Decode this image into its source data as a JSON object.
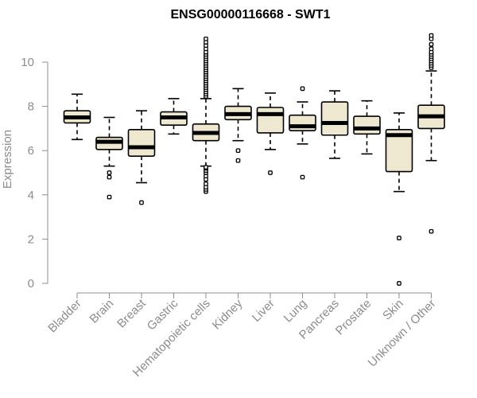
{
  "chart_data": {
    "type": "boxplot",
    "title": "ENSG00000116668 - SWT1",
    "xlabel": "",
    "ylabel": "Expression",
    "ylim": [
      0,
      11.3
    ],
    "yticks": [
      0,
      2,
      4,
      6,
      8,
      10
    ],
    "categories": [
      "Bladder",
      "Brain",
      "Breast",
      "Gastric",
      "Hematopoietic cells",
      "Kidney",
      "Liver",
      "Lung",
      "Pancreas",
      "Prostate",
      "Skin",
      "Unknown / Other"
    ],
    "box_color": "#efe8d0",
    "boxes": [
      {
        "category": "Bladder",
        "whisker_low": 6.5,
        "q1": 7.25,
        "median": 7.5,
        "q3": 7.8,
        "whisker_high": 8.55,
        "outliers": []
      },
      {
        "category": "Brain",
        "whisker_low": 5.3,
        "q1": 6.05,
        "median": 6.4,
        "q3": 6.6,
        "whisker_high": 7.5,
        "outliers": [
          5.0,
          4.8,
          3.9
        ]
      },
      {
        "category": "Breast",
        "whisker_low": 4.55,
        "q1": 5.75,
        "median": 6.15,
        "q3": 6.95,
        "whisker_high": 7.8,
        "outliers": [
          3.65
        ]
      },
      {
        "category": "Gastric",
        "whisker_low": 6.75,
        "q1": 7.15,
        "median": 7.5,
        "q3": 7.75,
        "whisker_high": 8.35,
        "outliers": []
      },
      {
        "category": "Hematopoietic cells",
        "whisker_low": 5.3,
        "q1": 6.45,
        "median": 6.8,
        "q3": 7.2,
        "whisker_high": 8.35,
        "outliers": [
          4.15,
          4.25,
          4.35,
          4.5,
          4.7,
          4.85,
          5.0,
          5.1,
          5.2,
          5.25,
          8.45,
          8.55,
          8.65,
          8.75,
          8.85,
          8.95,
          9.05,
          9.15,
          9.25,
          9.35,
          9.45,
          9.55,
          9.65,
          9.75,
          9.85,
          9.95,
          10.05,
          10.15,
          10.25,
          10.35,
          10.45,
          10.6,
          10.75,
          10.9,
          11.05
        ]
      },
      {
        "category": "Kidney",
        "whisker_low": 6.45,
        "q1": 7.4,
        "median": 7.65,
        "q3": 8.0,
        "whisker_high": 8.8,
        "outliers": [
          6.0,
          5.55
        ]
      },
      {
        "category": "Liver",
        "whisker_low": 6.05,
        "q1": 6.8,
        "median": 7.65,
        "q3": 7.95,
        "whisker_high": 8.6,
        "outliers": [
          5.0
        ]
      },
      {
        "category": "Lung",
        "whisker_low": 6.3,
        "q1": 6.9,
        "median": 7.1,
        "q3": 7.6,
        "whisker_high": 8.2,
        "outliers": [
          8.8,
          4.8
        ]
      },
      {
        "category": "Pancreas",
        "whisker_low": 5.65,
        "q1": 6.7,
        "median": 7.25,
        "q3": 8.2,
        "whisker_high": 8.7,
        "outliers": []
      },
      {
        "category": "Prostate",
        "whisker_low": 5.85,
        "q1": 6.75,
        "median": 7.0,
        "q3": 7.55,
        "whisker_high": 8.25,
        "outliers": []
      },
      {
        "category": "Skin",
        "whisker_low": 4.15,
        "q1": 5.05,
        "median": 6.7,
        "q3": 6.95,
        "whisker_high": 7.7,
        "outliers": [
          2.05,
          0.0
        ]
      },
      {
        "category": "Unknown / Other",
        "whisker_low": 5.55,
        "q1": 7.0,
        "median": 7.55,
        "q3": 8.05,
        "whisker_high": 9.6,
        "outliers": [
          2.35,
          9.75,
          9.85,
          9.95,
          10.05,
          10.15,
          10.25,
          10.35,
          10.45,
          10.6,
          10.8,
          11.05,
          11.2
        ]
      }
    ]
  }
}
